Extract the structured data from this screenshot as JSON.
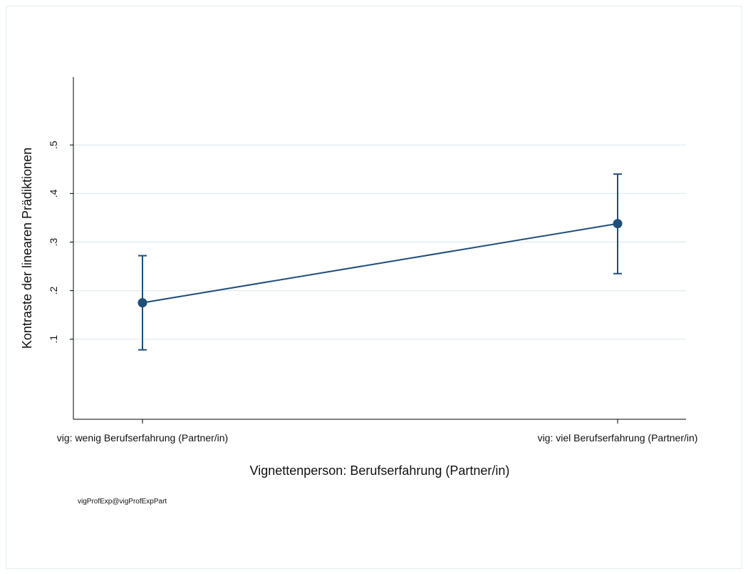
{
  "chart_data": {
    "type": "line",
    "title": "",
    "xlabel": "Vignettenperson: Berufserfahrung (Partner/in)",
    "ylabel": "Kontraste der linearen Prädiktionen",
    "categories": [
      "vig: wenig Berufserfahrung (Partner/in)",
      "vig: viel Berufserfahrung (Partner/in)"
    ],
    "y_ticks": [
      0.1,
      0.2,
      0.3,
      0.4,
      0.5
    ],
    "y_tick_labels": [
      ".1",
      ".2",
      ".3",
      ".4",
      ".5"
    ],
    "ylim": [
      -0.065,
      0.64
    ],
    "grid": true,
    "series": [
      {
        "values": [
          0.175,
          0.338
        ],
        "ci_lower": [
          0.078,
          0.235
        ],
        "ci_upper": [
          0.272,
          0.44
        ],
        "color": "#1f4e79"
      }
    ],
    "note": "vigProfExp@vigProfExpPart"
  }
}
